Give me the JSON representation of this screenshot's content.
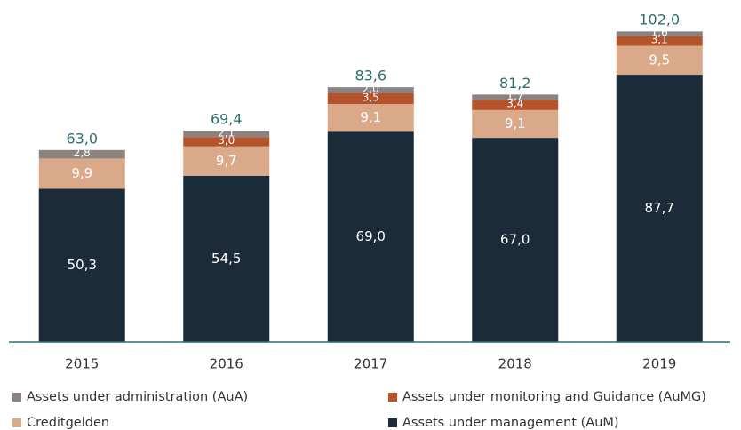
{
  "chart_data": {
    "type": "stacked_bar",
    "categories": [
      "2015",
      "2016",
      "2017",
      "2018",
      "2019"
    ],
    "series": [
      {
        "name": "Assets under management (AuM)",
        "color": "#1c2b3a",
        "values": [
          50.3,
          54.5,
          69.0,
          67.0,
          87.7
        ],
        "value_labels": [
          "50,3",
          "54,5",
          "69,0",
          "67,0",
          "87,7"
        ]
      },
      {
        "name": "Creditgelden",
        "color": "#d9a98a",
        "values": [
          9.9,
          9.7,
          9.1,
          9.1,
          9.5
        ],
        "value_labels": [
          "9,9",
          "9,7",
          "9,1",
          "9,1",
          "9,5"
        ]
      },
      {
        "name": "Assets under monitoring and Guidance (AuMG)",
        "color": "#b5532a",
        "values": [
          null,
          3.0,
          3.5,
          3.4,
          3.1
        ],
        "value_labels": [
          null,
          "3,0",
          "3,5",
          "3,4",
          "3,1"
        ]
      },
      {
        "name": "Assets under administration (AuA)",
        "color": "#8c8380",
        "values": [
          2.8,
          2.1,
          2.0,
          1.7,
          1.6
        ],
        "value_labels": [
          "2,8",
          "2,1",
          "2,0",
          "1,7",
          "1,6"
        ]
      }
    ],
    "totals": [
      63.0,
      69.4,
      83.6,
      81.2,
      102.0
    ],
    "total_labels": [
      "63,0",
      "69,4",
      "83,6",
      "81,2",
      "102,0"
    ]
  }
}
